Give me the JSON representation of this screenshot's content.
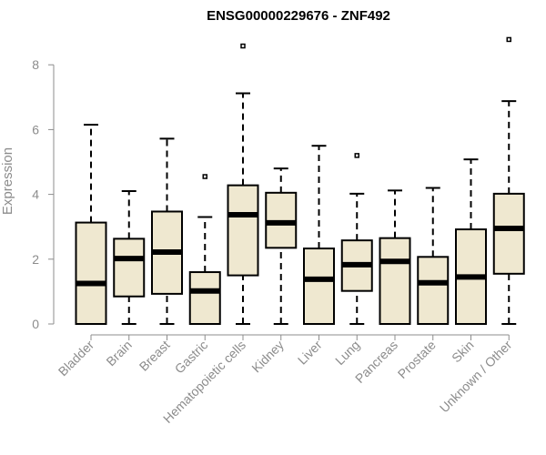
{
  "chart_data": {
    "type": "boxplot",
    "title": "ENSG00000229676 - ZNF492",
    "ylabel": "Expression",
    "xlabel": "",
    "ylim": [
      0,
      8.8
    ],
    "yticks": [
      0,
      2,
      4,
      6,
      8
    ],
    "grid": false,
    "colors": {
      "box_fill": "#efe8d0",
      "stroke": "#000000",
      "axis": "#8c8c8c"
    },
    "categories": [
      "Bladder",
      "Brain",
      "Breast",
      "Gastric",
      "Hematopoietic cells",
      "Kidney",
      "Liver",
      "Lung",
      "Pancreas",
      "Prostate",
      "Skin",
      "Unknown / Other"
    ],
    "boxes": [
      {
        "category": "Bladder",
        "whisker_low": 0,
        "q1": 0,
        "median": 1.25,
        "q3": 3.13,
        "whisker_high": 6.15,
        "outliers": []
      },
      {
        "category": "Brain",
        "whisker_low": 0,
        "q1": 0.85,
        "median": 2.02,
        "q3": 2.63,
        "whisker_high": 4.1,
        "outliers": []
      },
      {
        "category": "Breast",
        "whisker_low": 0,
        "q1": 0.93,
        "median": 2.22,
        "q3": 3.47,
        "whisker_high": 5.72,
        "outliers": []
      },
      {
        "category": "Gastric",
        "whisker_low": 0,
        "q1": 0,
        "median": 1.02,
        "q3": 1.6,
        "whisker_high": 3.3,
        "outliers": [
          4.55
        ]
      },
      {
        "category": "Hematopoietic cells",
        "whisker_low": 0,
        "q1": 1.5,
        "median": 3.37,
        "q3": 4.28,
        "whisker_high": 7.12,
        "outliers": [
          8.58
        ]
      },
      {
        "category": "Kidney",
        "whisker_low": 0,
        "q1": 2.35,
        "median": 3.12,
        "q3": 4.05,
        "whisker_high": 4.8,
        "outliers": []
      },
      {
        "category": "Liver",
        "whisker_low": 0,
        "q1": 0,
        "median": 1.38,
        "q3": 2.33,
        "whisker_high": 5.5,
        "outliers": []
      },
      {
        "category": "Lung",
        "whisker_low": 0,
        "q1": 1.02,
        "median": 1.83,
        "q3": 2.58,
        "whisker_high": 4.02,
        "outliers": [
          5.2
        ]
      },
      {
        "category": "Pancreas",
        "whisker_low": 0,
        "q1": 0,
        "median": 1.93,
        "q3": 2.65,
        "whisker_high": 4.12,
        "outliers": []
      },
      {
        "category": "Prostate",
        "whisker_low": 0,
        "q1": 0,
        "median": 1.27,
        "q3": 2.07,
        "whisker_high": 4.2,
        "outliers": []
      },
      {
        "category": "Skin",
        "whisker_low": 0,
        "q1": 0,
        "median": 1.45,
        "q3": 2.92,
        "whisker_high": 5.08,
        "outliers": []
      },
      {
        "category": "Unknown / Other",
        "whisker_low": 0,
        "q1": 1.55,
        "median": 2.95,
        "q3": 4.02,
        "whisker_high": 6.88,
        "outliers": [
          8.78
        ]
      }
    ]
  }
}
